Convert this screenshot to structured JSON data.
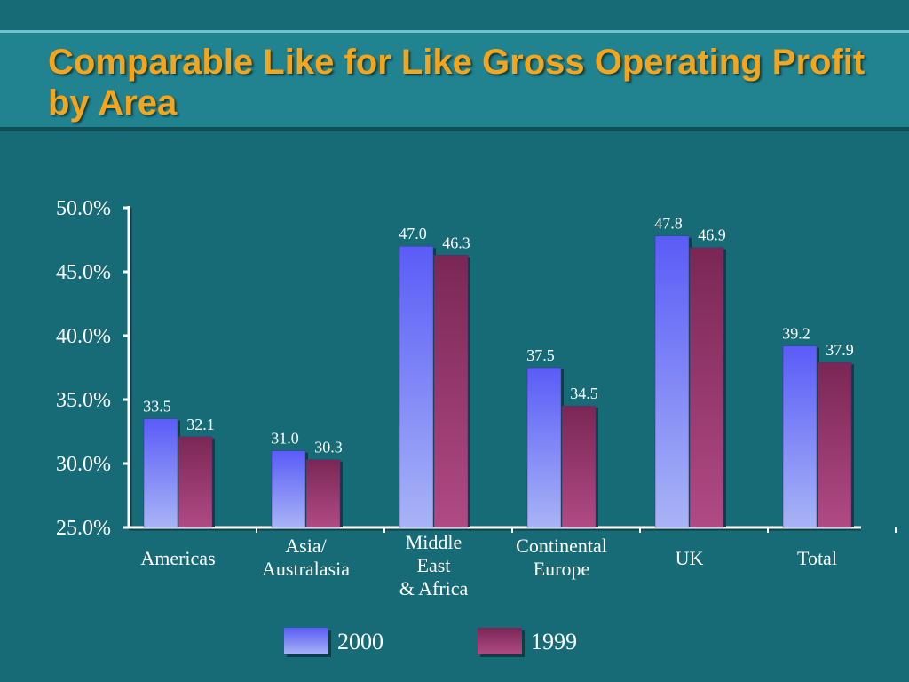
{
  "title": "Comparable Like for Like Gross Operating Profit by Area",
  "colors": {
    "background": "#176b76",
    "title": "#f4a51c",
    "series_2000_top": "#5a5cf7",
    "series_2000_bottom": "#a8b4f6",
    "series_1999_top": "#7a2755",
    "series_1999_bottom": "#b04a85"
  },
  "chart_data": {
    "type": "bar",
    "categories": [
      [
        "Americas"
      ],
      [
        "Asia/",
        "Australasia"
      ],
      [
        "Middle",
        "East",
        "& Africa"
      ],
      [
        "Continental",
        "Europe"
      ],
      [
        "UK"
      ],
      [
        "Total"
      ]
    ],
    "series": [
      {
        "name": "2000",
        "values": [
          33.5,
          31.0,
          47.0,
          37.5,
          47.8,
          39.2
        ],
        "labels": [
          "33.5",
          "31.0",
          "47.0",
          "37.5",
          "47.8",
          "39.2"
        ]
      },
      {
        "name": "1999",
        "values": [
          32.1,
          30.3,
          46.3,
          34.5,
          46.9,
          37.9
        ],
        "labels": [
          "32.1",
          "30.3",
          "46.3",
          "34.5",
          "46.9",
          "37.9"
        ]
      }
    ],
    "ylim": [
      25,
      50
    ],
    "yticks": [
      50,
      45,
      40,
      35,
      30,
      25
    ],
    "ytick_labels": [
      "50.0%",
      "45.0%",
      "40.0%",
      "35.0%",
      "30.0%",
      "25.0%"
    ],
    "xlabel": "",
    "ylabel": "",
    "grid": false,
    "legend": "bottom-center"
  }
}
